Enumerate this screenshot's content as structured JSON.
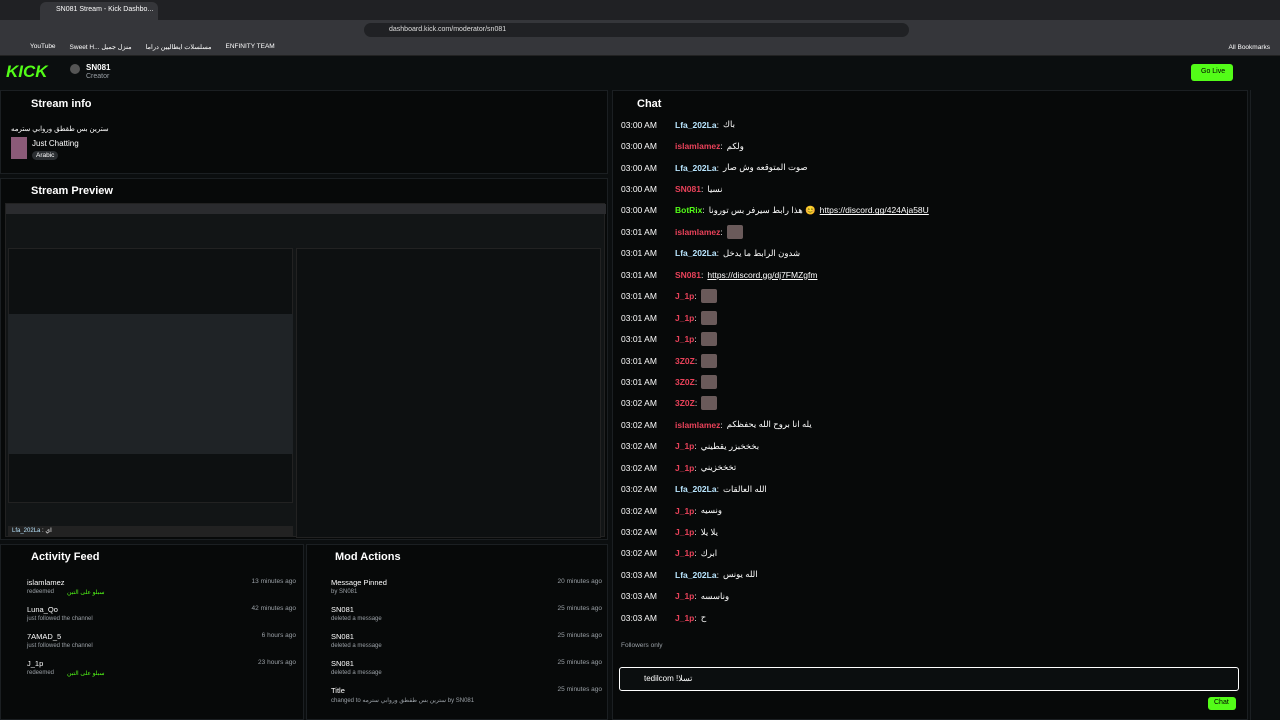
{
  "browser": {
    "tab_title": "SN081 Stream - Kick Dashbo...",
    "url": "dashboard.kick.com/moderator/sn081",
    "bookmarks": [
      "YouTube",
      "Sweet H... منزل جميل",
      "مسلسلات ايطاليين دراما",
      "ENFINITY TEAM"
    ],
    "all_bookmarks": "All Bookmarks"
  },
  "header": {
    "logo": "KICK",
    "channel": "SN081",
    "role": "Creator",
    "go_live": "Go Live"
  },
  "stream_info": {
    "title": "Stream info",
    "stream_title": "سترين بس طقطق وروابي سترمه",
    "category": "Just Chatting",
    "language": "Arabic"
  },
  "stream_preview": {
    "title": "Stream Preview",
    "overlay_user": "Lfa_202La",
    "overlay_text": ": اي"
  },
  "activity_feed": {
    "title": "Activity Feed",
    "items": [
      {
        "user": "islamlamez",
        "time": "13 minutes ago",
        "action": "redeemed",
        "reward": "سبلو على التبن"
      },
      {
        "user": "Luna_Qo",
        "time": "42 minutes ago",
        "action": "just followed the channel"
      },
      {
        "user": "7AMAD_5",
        "time": "6 hours ago",
        "action": "just followed the channel"
      },
      {
        "user": "J_1p",
        "time": "23 hours ago",
        "action": "redeemed",
        "reward": "سبلو على التبن"
      }
    ]
  },
  "mod_actions": {
    "title": "Mod Actions",
    "items": [
      {
        "title": "Message Pinned",
        "detail": "by SN081",
        "time": "20 minutes ago"
      },
      {
        "title": "SN081",
        "detail": "deleted a message",
        "time": "25 minutes ago"
      },
      {
        "title": "SN081",
        "detail": "deleted a message",
        "time": "25 minutes ago"
      },
      {
        "title": "SN081",
        "detail": "deleted a message",
        "time": "25 minutes ago"
      },
      {
        "title": "Title",
        "detail": "changed to سترين بس طقطق وروابي سترمه by SN081",
        "time": "25 minutes ago"
      }
    ]
  },
  "chat": {
    "title": "Chat",
    "messages": [
      {
        "time": "03:00 AM",
        "user": "Lfa_202La",
        "color": "#b9e6ff",
        "text": "باك"
      },
      {
        "time": "03:00 AM",
        "user": "islamlamez",
        "color": "#e9425a",
        "text": "ولكم"
      },
      {
        "time": "03:00 AM",
        "user": "Lfa_202La",
        "color": "#b9e6ff",
        "text": "صوت المتوقعه وش صار"
      },
      {
        "time": "03:00 AM",
        "user": "SN081",
        "color": "#e9425a",
        "text": "نسيا"
      },
      {
        "time": "03:00 AM",
        "user": "BotRix",
        "color": "#53fc18",
        "text": "هذا رابط سيرفر بس تورونا 😊",
        "link": "https://discord.gg/424Aja58U"
      },
      {
        "time": "03:01 AM",
        "user": "islamlamez",
        "color": "#e9425a"
      },
      {
        "time": "03:01 AM",
        "user": "Lfa_202La",
        "color": "#b9e6ff",
        "text": "شدون الرابط ما يدخل"
      },
      {
        "time": "03:01 AM",
        "user": "SN081",
        "color": "#e9425a",
        "link": "https://discord.gg/dj7FMZgfm"
      },
      {
        "time": "03:01 AM",
        "user": "J_1p",
        "color": "#e9425a"
      },
      {
        "time": "03:01 AM",
        "user": "J_1p",
        "color": "#e9425a"
      },
      {
        "time": "03:01 AM",
        "user": "J_1p",
        "color": "#e9425a"
      },
      {
        "time": "03:01 AM",
        "user": "3Z0Z",
        "color": "#e9425a"
      },
      {
        "time": "03:01 AM",
        "user": "3Z0Z",
        "color": "#e9425a"
      },
      {
        "time": "03:02 AM",
        "user": "3Z0Z",
        "color": "#e9425a"
      },
      {
        "time": "03:02 AM",
        "user": "islamlamez",
        "color": "#e9425a",
        "text": "يله انا بروح الله يحفظكم"
      },
      {
        "time": "03:02 AM",
        "user": "J_1p",
        "color": "#e9425a",
        "text": "بخخخبزر يقطيني"
      },
      {
        "time": "03:02 AM",
        "user": "J_1p",
        "color": "#e9425a",
        "text": "تخخخزيني"
      },
      {
        "time": "03:02 AM",
        "user": "Lfa_202La",
        "color": "#b9e6ff",
        "text": "الله العالقات"
      },
      {
        "time": "03:02 AM",
        "user": "J_1p",
        "color": "#e9425a",
        "text": "ونسيه"
      },
      {
        "time": "03:02 AM",
        "user": "J_1p",
        "color": "#e9425a",
        "text": "يلا يلا"
      },
      {
        "time": "03:02 AM",
        "user": "J_1p",
        "color": "#e9425a",
        "text": "ابرك"
      },
      {
        "time": "03:03 AM",
        "user": "Lfa_202La",
        "color": "#b9e6ff",
        "text": "الله يونس"
      },
      {
        "time": "03:03 AM",
        "user": "J_1p",
        "color": "#e9425a",
        "text": "وناسسه"
      },
      {
        "time": "03:03 AM",
        "user": "J_1p",
        "color": "#e9425a",
        "text": "ح"
      }
    ],
    "followers_only": "Followers only",
    "input": "tedilcom !تسلا",
    "send": "Chat"
  }
}
